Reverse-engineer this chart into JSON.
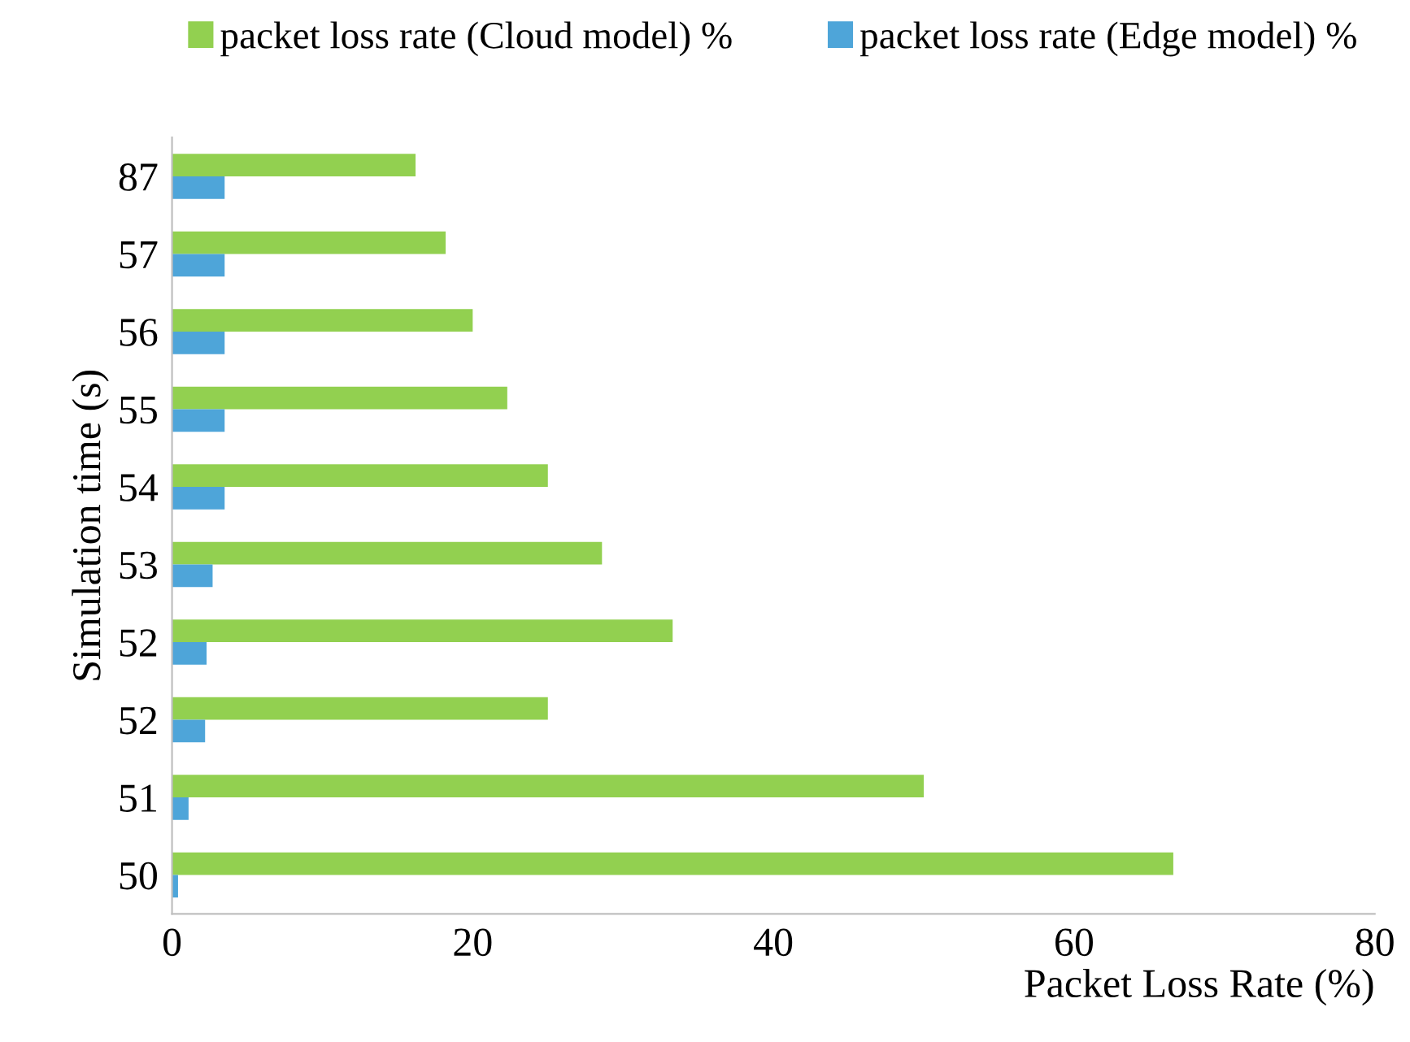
{
  "chart_data": {
    "type": "bar",
    "orientation": "horizontal",
    "xlabel": "Packet Loss Rate (%)",
    "ylabel": "Simulation time (s)",
    "categories": [
      "87",
      "57",
      "56",
      "55",
      "54",
      "53",
      "52",
      "52",
      "51",
      "50"
    ],
    "series": [
      {
        "name": "packet loss rate (Cloud model) %",
        "color": "#92d050",
        "values": [
          16.2,
          18.2,
          20.0,
          22.3,
          25.0,
          28.6,
          33.3,
          25.0,
          50.0,
          66.6
        ]
      },
      {
        "name": "packet loss rate (Edge model) %",
        "color": "#4ea5d9",
        "values": [
          3.5,
          3.5,
          3.5,
          3.5,
          3.5,
          2.7,
          2.3,
          2.2,
          1.1,
          0.4
        ]
      }
    ],
    "xlim": [
      0,
      80
    ],
    "xticks": [
      0,
      20,
      40,
      60,
      80
    ],
    "grid": false,
    "legend": "top"
  }
}
